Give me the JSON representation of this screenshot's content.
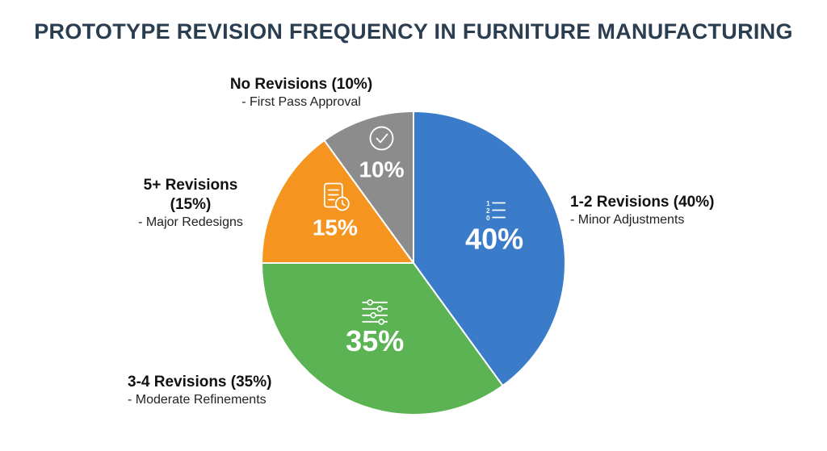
{
  "chart_data": {
    "type": "pie",
    "title": "PROTOTYPE REVISION FREQUENCY IN FURNITURE MANUFACTURING",
    "slices": [
      {
        "label": "1-2 Revisions (40%)",
        "sublabel": "- Minor Adjustments",
        "value": 40,
        "value_label": "40%",
        "color": "#3a7cc9",
        "icon": "numbered-list-icon"
      },
      {
        "label": "3-4 Revisions (35%)",
        "sublabel": "- Moderate Refinements",
        "value": 35,
        "value_label": "35%",
        "color": "#5cb353",
        "icon": "sliders-icon"
      },
      {
        "label": "5+ Revisions (15%)",
        "sublabel": "- Major Redesigns",
        "value": 15,
        "value_label": "15%",
        "color": "#f5951f",
        "icon": "document-clock-icon"
      },
      {
        "label": "No Revisions (10%)",
        "sublabel": "- First Pass Approval",
        "value": 10,
        "value_label": "10%",
        "color": "#8c8c8c",
        "icon": "check-circle-icon"
      }
    ]
  }
}
